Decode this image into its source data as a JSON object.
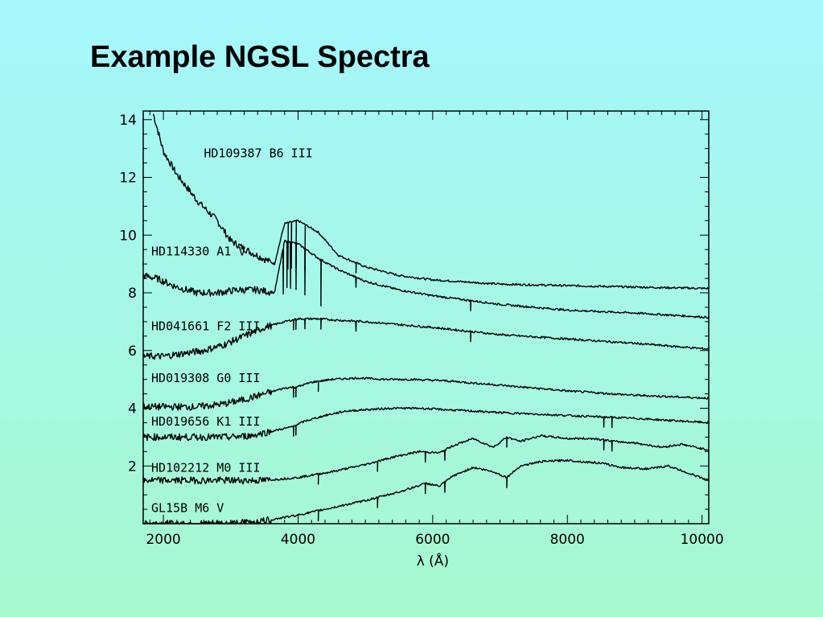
{
  "slide": {
    "title": "Example NGSL Spectra"
  },
  "chart_data": {
    "type": "line",
    "xlabel": "λ (Å)",
    "ylabel": "",
    "xlim": [
      1700,
      10100
    ],
    "ylim": [
      0,
      14.3
    ],
    "xticks": [
      2000,
      4000,
      6000,
      8000,
      10000
    ],
    "yticks": [
      2,
      4,
      6,
      8,
      10,
      12,
      14
    ],
    "grid": false,
    "series": [
      {
        "name": "HD109387  B6  III",
        "label_x": 2600,
        "label_y": 12.7,
        "x": [
          1850,
          2000,
          2200,
          2500,
          2800,
          3000,
          3300,
          3650,
          3800,
          4000,
          4300,
          4600,
          5000,
          5500,
          6000,
          7000,
          8000,
          9000,
          10100
        ],
        "y": [
          14.2,
          12.9,
          12.1,
          11.2,
          10.5,
          9.8,
          9.4,
          9.0,
          10.4,
          10.5,
          10.1,
          9.3,
          8.9,
          8.6,
          8.45,
          8.3,
          8.25,
          8.2,
          8.15
        ]
      },
      {
        "name": "HD114330  A1  V",
        "label_x": 1820,
        "label_y": 9.3,
        "x": [
          1700,
          1900,
          2200,
          2500,
          2800,
          3100,
          3400,
          3650,
          3800,
          4000,
          4300,
          4600,
          5000,
          5500,
          6000,
          7000,
          8000,
          9000,
          10100
        ],
        "y": [
          8.6,
          8.5,
          8.2,
          8.0,
          8.0,
          8.1,
          8.1,
          8.0,
          9.8,
          9.7,
          9.2,
          8.8,
          8.4,
          8.1,
          7.9,
          7.6,
          7.4,
          7.3,
          7.15
        ]
      },
      {
        "name": "HD041661  F2  III",
        "label_x": 1820,
        "label_y": 6.7,
        "x": [
          1700,
          2000,
          2300,
          2600,
          2900,
          3200,
          3500,
          3800,
          4000,
          4300,
          4600,
          5000,
          5500,
          6000,
          7000,
          8000,
          9000,
          10100
        ],
        "y": [
          5.8,
          5.8,
          5.9,
          6.0,
          6.2,
          6.5,
          6.8,
          7.0,
          7.1,
          7.1,
          7.05,
          7.0,
          6.9,
          6.8,
          6.55,
          6.4,
          6.25,
          6.05
        ]
      },
      {
        "name": "HD019308  G0  III",
        "label_x": 1820,
        "label_y": 4.9,
        "x": [
          1700,
          2500,
          2900,
          3200,
          3500,
          3800,
          4000,
          4200,
          4500,
          4900,
          5300,
          5700,
          6200,
          7000,
          8000,
          9000,
          10100
        ],
        "y": [
          4.05,
          4.05,
          4.15,
          4.3,
          4.5,
          4.7,
          4.75,
          4.9,
          5.0,
          5.05,
          5.0,
          5.0,
          4.95,
          4.8,
          4.6,
          4.45,
          4.35
        ]
      },
      {
        "name": "HD019656  K1  III",
        "label_x": 1820,
        "label_y": 3.4,
        "x": [
          1700,
          3000,
          3300,
          3600,
          3900,
          4100,
          4400,
          4700,
          5000,
          5400,
          5800,
          6200,
          7000,
          8000,
          9000,
          10100
        ],
        "y": [
          3.0,
          3.0,
          3.05,
          3.2,
          3.35,
          3.55,
          3.75,
          3.9,
          3.95,
          4.0,
          4.0,
          3.95,
          3.85,
          3.75,
          3.65,
          3.5
        ]
      },
      {
        "name": "HD102212  M0  III",
        "label_x": 1820,
        "label_y": 1.8,
        "x": [
          1700,
          3500,
          4000,
          4500,
          5000,
          5400,
          5800,
          6100,
          6300,
          6600,
          6900,
          7100,
          7300,
          7600,
          8000,
          8400,
          8700,
          9000,
          9400,
          9700,
          10100
        ],
        "y": [
          1.5,
          1.5,
          1.6,
          1.8,
          2.05,
          2.3,
          2.5,
          2.45,
          2.7,
          2.95,
          2.65,
          3.0,
          2.85,
          3.05,
          2.95,
          2.95,
          2.85,
          2.8,
          2.65,
          2.75,
          2.55
        ]
      },
      {
        "name": "GL15B      M6  V",
        "label_x": 1820,
        "label_y": 0.4,
        "x": [
          1700,
          3000,
          3500,
          4000,
          4500,
          5000,
          5500,
          5900,
          6100,
          6300,
          6600,
          6900,
          7100,
          7300,
          7600,
          8000,
          8200,
          8500,
          8800,
          9200,
          9500,
          9800,
          10100
        ],
        "y": [
          0,
          0,
          0.1,
          0.3,
          0.55,
          0.8,
          1.1,
          1.4,
          1.3,
          1.65,
          1.95,
          1.8,
          1.6,
          2.0,
          2.15,
          2.2,
          2.15,
          2.1,
          1.95,
          1.9,
          2.0,
          1.75,
          1.5
        ]
      }
    ],
    "absorption_dips": [
      {
        "series": 0,
        "x": [
          3800,
          3850,
          3900,
          3970,
          4102,
          4340,
          4861
        ]
      },
      {
        "series": 1,
        "x": [
          3780,
          3835,
          3889,
          3970,
          4102,
          4340,
          4861,
          6563
        ]
      },
      {
        "series": 2,
        "x": [
          3933,
          3968,
          4102,
          4340,
          4861,
          6563
        ]
      },
      {
        "series": 3,
        "x": [
          3933,
          3968,
          4300
        ]
      },
      {
        "series": 4,
        "x": [
          3933,
          3968,
          8542,
          8662
        ]
      },
      {
        "series": 5,
        "x": [
          4300,
          5180,
          5890,
          6180,
          7100,
          8542,
          8662
        ]
      },
      {
        "series": 6,
        "x": [
          4300,
          5180,
          5890,
          6180,
          7100
        ]
      }
    ]
  }
}
